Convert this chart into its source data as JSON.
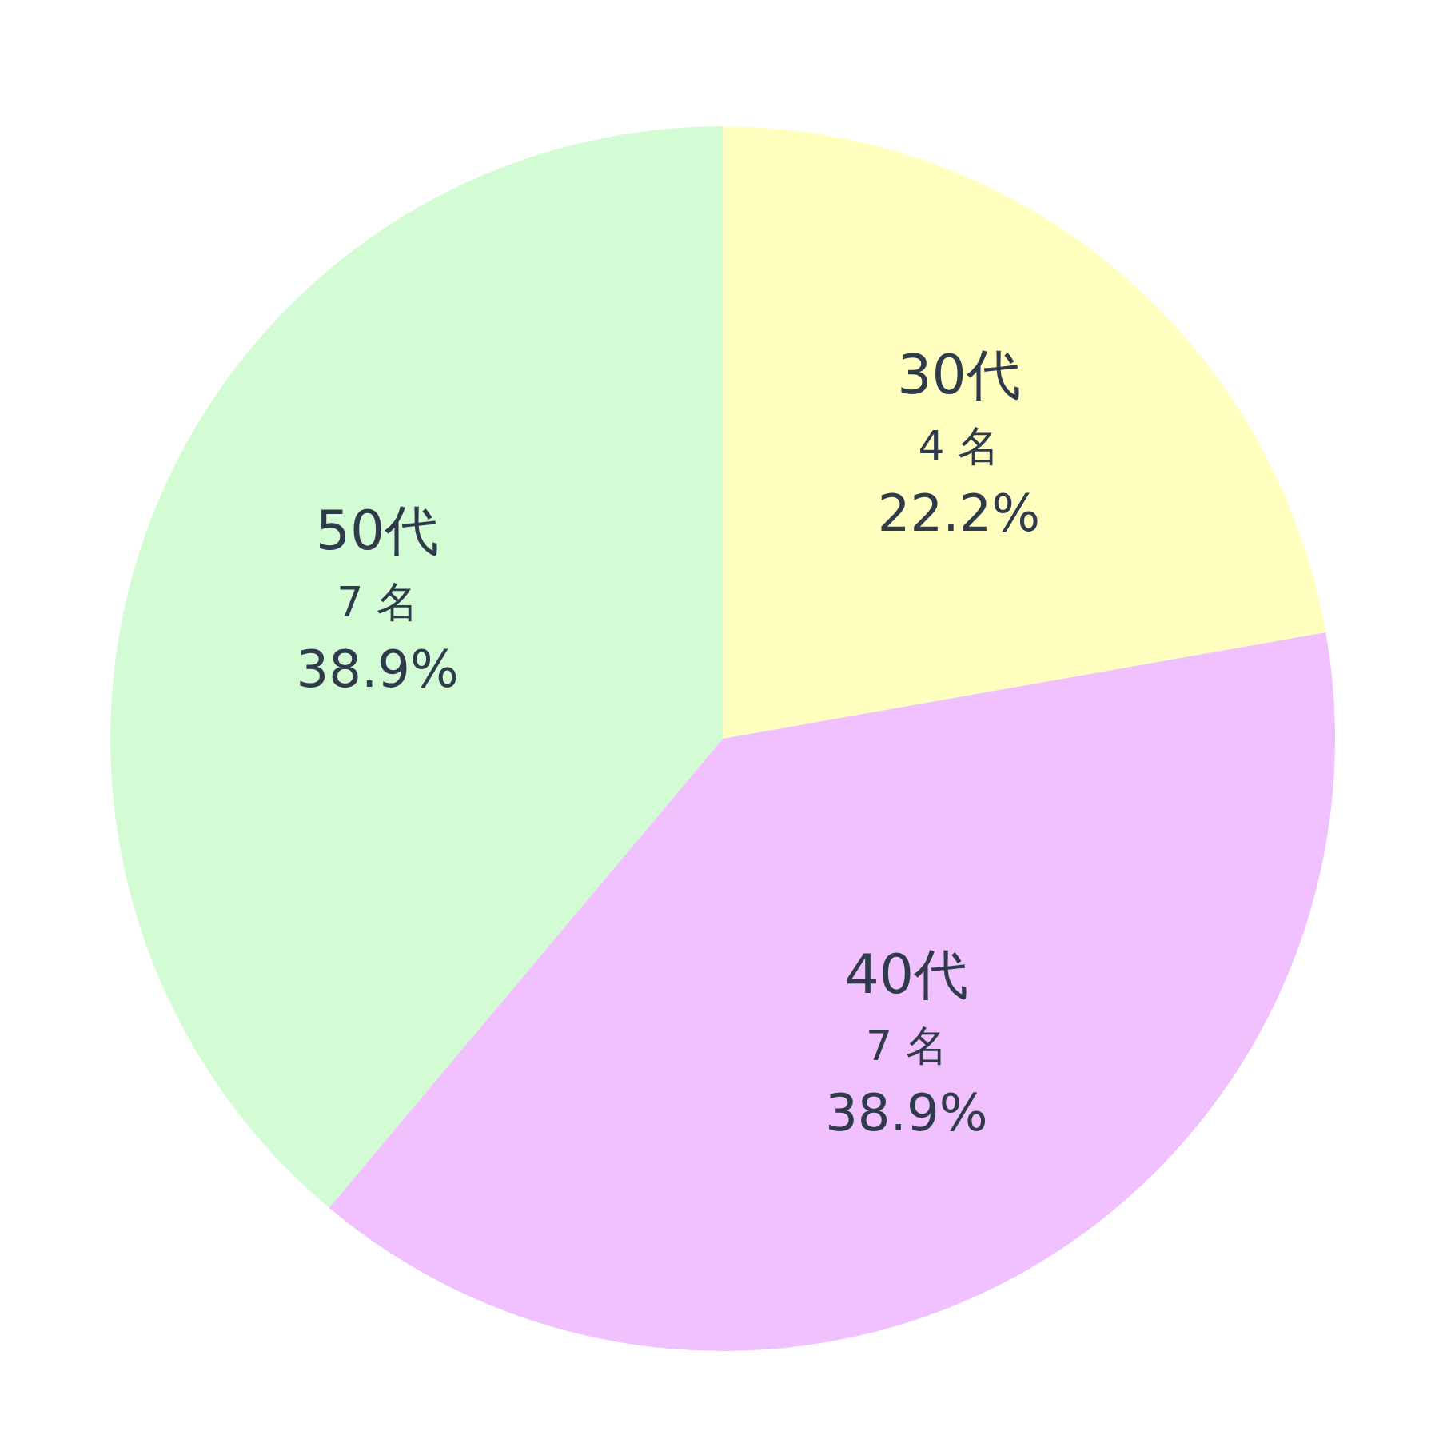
{
  "chart_data": {
    "type": "pie",
    "categories": [
      "30代",
      "40代",
      "50代"
    ],
    "values": [
      4,
      7,
      7
    ],
    "colors": [
      "#ffffc0",
      "#f0c0ff",
      "#d4fcd4"
    ],
    "value_labels": [
      "4 名\n22.2%",
      "7 名\n38.9%",
      "7 名\n38.9%"
    ]
  }
}
